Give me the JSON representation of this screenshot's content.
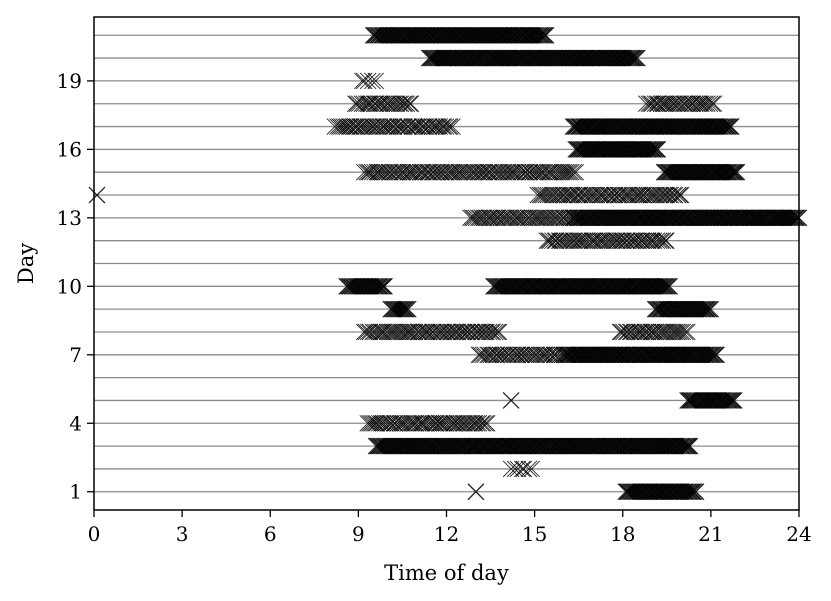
{
  "chart_data": {
    "type": "scatter",
    "marker": "x",
    "xlabel": "Time of day",
    "ylabel": "Day",
    "xlim": [
      0,
      24
    ],
    "ylim": [
      0.2,
      21.8
    ],
    "xticks": [
      0,
      3,
      6,
      9,
      12,
      15,
      18,
      21,
      24
    ],
    "yticks": [
      1,
      4,
      7,
      10,
      13,
      16,
      19
    ],
    "grid_y": true,
    "days": [
      1,
      2,
      3,
      4,
      5,
      6,
      7,
      8,
      9,
      10,
      11,
      12,
      13,
      14,
      15,
      16,
      17,
      18,
      19,
      20,
      21
    ],
    "activity": [
      {
        "day": 1,
        "single_points": [
          13.0
        ],
        "segments": [
          {
            "start": 18.1,
            "end": 20.5,
            "density": "dense"
          }
        ]
      },
      {
        "day": 2,
        "single_points": [],
        "segments": [
          {
            "start": 14.2,
            "end": 14.9,
            "density": "sparse"
          }
        ]
      },
      {
        "day": 3,
        "single_points": [],
        "segments": [
          {
            "start": 9.6,
            "end": 20.3,
            "density": "dense"
          }
        ]
      },
      {
        "day": 4,
        "single_points": [],
        "segments": [
          {
            "start": 9.3,
            "end": 13.4,
            "density": "medium"
          }
        ]
      },
      {
        "day": 5,
        "single_points": [
          14.2
        ],
        "segments": [
          {
            "start": 20.2,
            "end": 21.8,
            "density": "dense"
          }
        ]
      },
      {
        "day": 6,
        "single_points": [],
        "segments": []
      },
      {
        "day": 7,
        "single_points": [],
        "segments": [
          {
            "start": 13.1,
            "end": 16.0,
            "density": "medium"
          },
          {
            "start": 16.0,
            "end": 21.2,
            "density": "dense"
          }
        ]
      },
      {
        "day": 8,
        "single_points": [],
        "segments": [
          {
            "start": 9.2,
            "end": 13.8,
            "density": "medium"
          },
          {
            "start": 17.9,
            "end": 20.2,
            "density": "medium"
          }
        ]
      },
      {
        "day": 9,
        "single_points": [],
        "segments": [
          {
            "start": 10.1,
            "end": 10.7,
            "density": "dense"
          },
          {
            "start": 19.1,
            "end": 21.0,
            "density": "dense"
          }
        ]
      },
      {
        "day": 10,
        "single_points": [],
        "segments": [
          {
            "start": 8.6,
            "end": 9.9,
            "density": "dense"
          },
          {
            "start": 13.6,
            "end": 19.6,
            "density": "dense"
          }
        ]
      },
      {
        "day": 11,
        "single_points": [],
        "segments": []
      },
      {
        "day": 12,
        "single_points": [],
        "segments": [
          {
            "start": 15.4,
            "end": 19.5,
            "density": "medium"
          }
        ]
      },
      {
        "day": 13,
        "single_points": [],
        "segments": [
          {
            "start": 12.8,
            "end": 16.3,
            "density": "medium"
          },
          {
            "start": 16.3,
            "end": 24.0,
            "density": "dense"
          }
        ]
      },
      {
        "day": 14,
        "single_points": [
          0.1
        ],
        "segments": [
          {
            "start": 15.1,
            "end": 20.0,
            "density": "medium"
          }
        ]
      },
      {
        "day": 15,
        "single_points": [],
        "segments": [
          {
            "start": 9.2,
            "end": 16.4,
            "density": "medium"
          },
          {
            "start": 19.4,
            "end": 21.9,
            "density": "dense"
          }
        ]
      },
      {
        "day": 16,
        "single_points": [],
        "segments": [
          {
            "start": 16.4,
            "end": 19.2,
            "density": "dense"
          }
        ]
      },
      {
        "day": 17,
        "single_points": [],
        "segments": [
          {
            "start": 8.2,
            "end": 12.2,
            "density": "medium"
          },
          {
            "start": 16.3,
            "end": 21.7,
            "density": "dense"
          }
        ]
      },
      {
        "day": 18,
        "single_points": [],
        "segments": [
          {
            "start": 8.9,
            "end": 10.8,
            "density": "medium"
          },
          {
            "start": 18.8,
            "end": 21.1,
            "density": "medium"
          }
        ]
      },
      {
        "day": 19,
        "single_points": [],
        "segments": [
          {
            "start": 9.1,
            "end": 9.6,
            "density": "sparse"
          }
        ]
      },
      {
        "day": 20,
        "single_points": [],
        "segments": [
          {
            "start": 11.4,
            "end": 18.5,
            "density": "dense"
          }
        ]
      },
      {
        "day": 21,
        "single_points": [],
        "segments": [
          {
            "start": 9.5,
            "end": 15.4,
            "density": "dense"
          }
        ]
      }
    ]
  }
}
